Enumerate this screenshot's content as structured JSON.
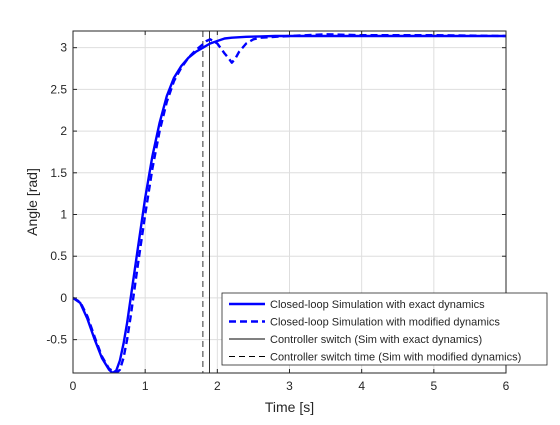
{
  "chart_data": {
    "type": "line",
    "xlabel": "Time [s]",
    "ylabel": "Angle [rad]",
    "xlim": [
      0,
      6
    ],
    "ylim": [
      -0.9,
      3.2
    ],
    "grid": true,
    "legend_placement": "bottom-right",
    "x_ticks": [
      0,
      1,
      2,
      3,
      4,
      5,
      6
    ],
    "x_tick_labels": [
      "0",
      "1",
      "2",
      "3",
      "4",
      "5",
      "6"
    ],
    "y_ticks": [
      -0.5,
      0,
      0.5,
      1,
      1.5,
      2,
      2.5,
      3
    ],
    "y_tick_labels": [
      "-0.5",
      "0",
      "0.5",
      "1",
      "1.5",
      "2",
      "2.5",
      "3"
    ],
    "series": [
      {
        "name": "Closed-loop Simulation with exact dynamics",
        "style": "solid-thick",
        "color": "#0000ff",
        "x": [
          0,
          0.1,
          0.2,
          0.3,
          0.4,
          0.5,
          0.55,
          0.6,
          0.65,
          0.7,
          0.75,
          0.8,
          0.9,
          1.0,
          1.1,
          1.2,
          1.3,
          1.4,
          1.5,
          1.6,
          1.7,
          1.8,
          1.9,
          2.0,
          2.1,
          2.2,
          2.4,
          2.6,
          2.8,
          3.0,
          4.0,
          5.0,
          6.0
        ],
        "y": [
          0,
          -0.06,
          -0.25,
          -0.5,
          -0.72,
          -0.86,
          -0.9,
          -0.87,
          -0.75,
          -0.55,
          -0.3,
          0.0,
          0.6,
          1.2,
          1.7,
          2.1,
          2.42,
          2.64,
          2.78,
          2.88,
          2.95,
          3.0,
          3.05,
          3.08,
          3.11,
          3.12,
          3.13,
          3.135,
          3.14,
          3.14,
          3.14,
          3.14,
          3.14
        ]
      },
      {
        "name": "Closed-loop Simulation with modified dynamics",
        "style": "dashed-thick",
        "color": "#0000ff",
        "x": [
          0,
          0.1,
          0.2,
          0.3,
          0.4,
          0.5,
          0.6,
          0.65,
          0.7,
          0.75,
          0.8,
          0.9,
          1.0,
          1.1,
          1.2,
          1.3,
          1.4,
          1.5,
          1.6,
          1.7,
          1.8,
          1.85,
          1.9,
          2.0,
          2.1,
          2.15,
          2.2,
          2.25,
          2.3,
          2.4,
          2.5,
          2.6,
          2.8,
          3.0,
          3.5,
          4.0,
          5.0,
          6.0
        ],
        "y": [
          0,
          -0.05,
          -0.22,
          -0.47,
          -0.7,
          -0.85,
          -0.9,
          -0.86,
          -0.72,
          -0.5,
          -0.22,
          0.4,
          1.0,
          1.55,
          2.0,
          2.35,
          2.6,
          2.76,
          2.88,
          2.97,
          3.04,
          3.08,
          3.1,
          3.05,
          2.93,
          2.88,
          2.82,
          2.87,
          2.95,
          3.05,
          3.1,
          3.12,
          3.13,
          3.14,
          3.16,
          3.15,
          3.15,
          3.14
        ]
      }
    ],
    "vertical_lines": [
      {
        "name": "Controller switch (Sim with exact dynamics)",
        "style": "solid-thin",
        "color": "#000000",
        "x": 1.89
      },
      {
        "name": "Controller switch time (Sim with modified dynamics)",
        "style": "dashed-thin",
        "color": "#000000",
        "x": 1.8
      }
    ]
  }
}
